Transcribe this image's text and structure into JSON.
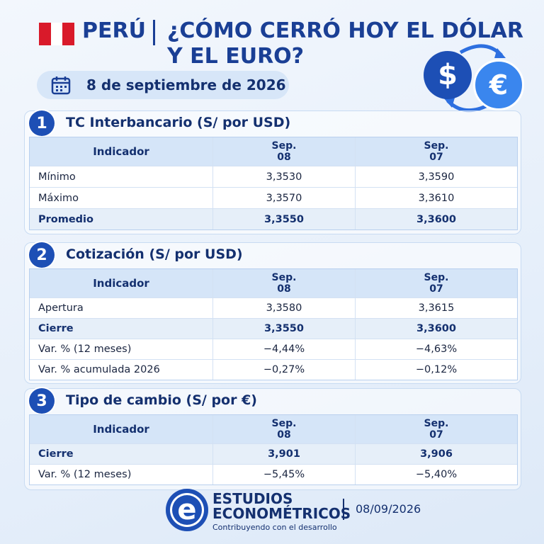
{
  "header": {
    "country": "PERÚ",
    "title_lines": [
      "¿CÓMO CERRÓ HOY EL DÓLAR",
      "Y EL EURO?"
    ],
    "date": "8 de septiembre de 2026",
    "icons": [
      "$",
      "€"
    ]
  },
  "sections": [
    {
      "number": "1",
      "title": "TC Interbancario",
      "unit": "(S/ por USD)",
      "columns": [
        "Indicador",
        {
          "month": "Sep.",
          "day": "08"
        },
        {
          "month": "Sep.",
          "day": "07"
        }
      ],
      "rows": [
        {
          "label": "Mínimo",
          "values": [
            "3,3530",
            "3,3590"
          ],
          "bold": false
        },
        {
          "label": "Máximo",
          "values": [
            "3,3570",
            "3,3610"
          ],
          "bold": false
        },
        {
          "label": "Promedio",
          "values": [
            "3,3550",
            "3,3600"
          ],
          "bold": true
        }
      ]
    },
    {
      "number": "2",
      "title": "Cotización",
      "unit": "(S/ por USD)",
      "columns": [
        "Indicador",
        {
          "month": "Sep.",
          "day": "08"
        },
        {
          "month": "Sep.",
          "day": "07"
        }
      ],
      "rows": [
        {
          "label": "Apertura",
          "values": [
            "3,3580",
            "3,3615"
          ],
          "bold": false
        },
        {
          "label": "Cierre",
          "values": [
            "3,3550",
            "3,3600"
          ],
          "bold": true
        },
        {
          "label": "Var. % (12 meses)",
          "values": [
            "−4,44%",
            "−4,63%"
          ],
          "bold": false
        },
        {
          "label": "Var. % acumulada 2026",
          "values": [
            "−0,27%",
            "−0,12%"
          ],
          "bold": false
        }
      ]
    },
    {
      "number": "3",
      "title": "Tipo de cambio",
      "unit": "(S/ por €)",
      "columns": [
        "Indicador",
        {
          "month": "Sep.",
          "day": "08"
        },
        {
          "month": "Sep.",
          "day": "07"
        }
      ],
      "rows": [
        {
          "label": "Cierre",
          "values": [
            "3,901",
            "3,906"
          ],
          "bold": true
        },
        {
          "label": "Var. % (12 meses)",
          "values": [
            "−5,45%",
            "−5,40%"
          ],
          "bold": false
        }
      ]
    }
  ],
  "footer": {
    "logo_letter": "e",
    "brand_lines": [
      "ESTUDIOS",
      "ECONOMÉTRICOS"
    ],
    "tagline": "Contribuyendo con el desarrollo",
    "date": "08/09/2026"
  }
}
